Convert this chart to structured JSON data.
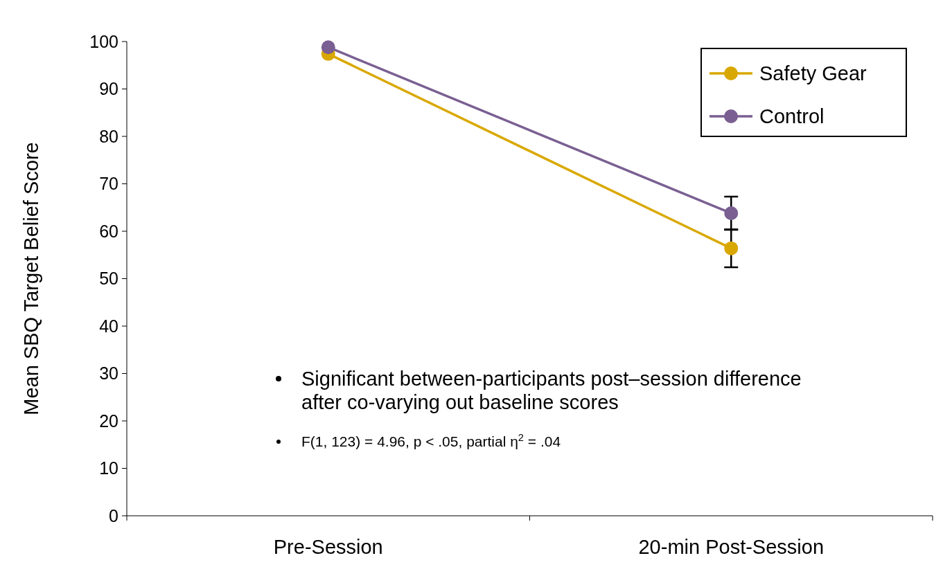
{
  "chart_data": {
    "type": "line",
    "ylabel": "Mean SBQ Target Belief Score",
    "categories": [
      "Pre-Session",
      "20-min Post-Session"
    ],
    "series": [
      {
        "name": "Safety Gear",
        "color": "#d9a800",
        "values": [
          97.4,
          56.4
        ],
        "errors": [
          null,
          4
        ]
      },
      {
        "name": "Control",
        "color": "#7a5f92",
        "values": [
          98.8,
          63.8
        ],
        "errors": [
          null,
          3.5
        ]
      }
    ],
    "ylim": [
      0,
      100
    ],
    "yticks": [
      0,
      10,
      20,
      30,
      40,
      50,
      60,
      70,
      80,
      90,
      100
    ],
    "marker": "circle",
    "line_style": "solid",
    "legend": "top right",
    "annotations": [
      "Significant between-participants post–session difference after co-varying out baseline scores",
      "F(1, 123) = 4.96, p < .05, partial η$^{2}$ = .04"
    ]
  }
}
